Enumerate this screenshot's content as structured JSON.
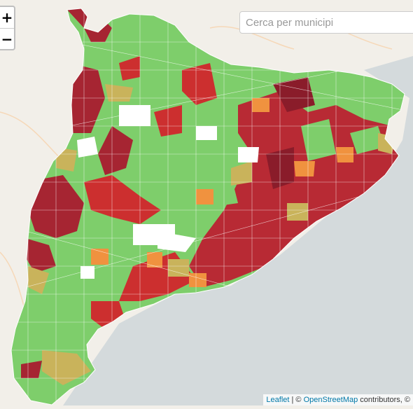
{
  "search": {
    "placeholder": "Cerca per municipi"
  },
  "zoom": {
    "in_label": "+",
    "out_label": "−"
  },
  "attribution": {
    "leaflet": "Leaflet",
    "separator": " | © ",
    "osm": "OpenStreetMap",
    "tail": " contributors, ©"
  },
  "legend_colors": {
    "sea": "#d4dadc",
    "land": "#f2efe9",
    "green": "#7ece6b",
    "olive": "#c9b35b",
    "orange": "#f0923f",
    "red": "#cc2f2f",
    "darkred": "#a62532",
    "maroon": "#8a1c2a",
    "blank": "#ffffff"
  }
}
